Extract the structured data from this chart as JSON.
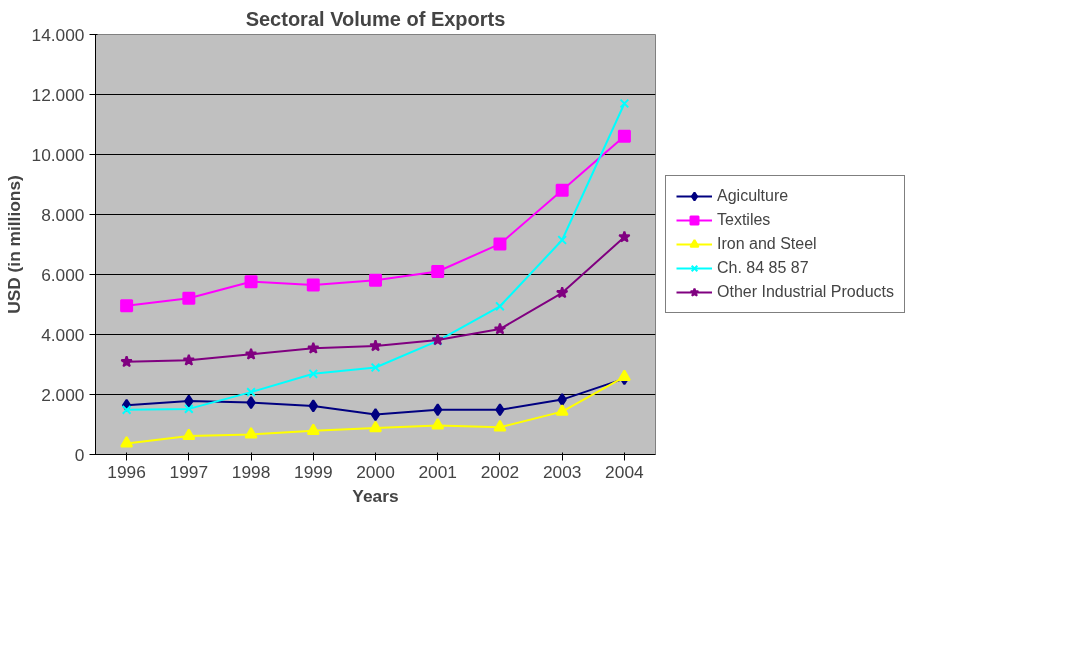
{
  "chart_data": {
    "type": "line",
    "title": "Sectoral Volume of Exports",
    "xlabel": "Years",
    "ylabel": "USD (in millions)",
    "categories": [
      "1996",
      "1997",
      "1998",
      "1999",
      "2000",
      "2001",
      "2002",
      "2003",
      "2004"
    ],
    "series": [
      {
        "name": "Agiculture",
        "color": "#000080",
        "marker": "diamond",
        "values": [
          1640,
          1780,
          1730,
          1620,
          1330,
          1490,
          1490,
          1830,
          2530
        ]
      },
      {
        "name": "Textiles",
        "color": "#ff00ff",
        "marker": "square",
        "values": [
          4960,
          5210,
          5760,
          5650,
          5810,
          6100,
          7020,
          8810,
          10610
        ]
      },
      {
        "name": "Iron and Steel",
        "color": "#ffff00",
        "marker": "triangle",
        "values": [
          370,
          620,
          670,
          790,
          880,
          970,
          910,
          1430,
          2590
        ]
      },
      {
        "name": "Ch. 84 85 87",
        "color": "#00ffff",
        "marker": "cross",
        "values": [
          1490,
          1520,
          2080,
          2690,
          2900,
          3790,
          4940,
          7150,
          11700
        ]
      },
      {
        "name": "Other Industrial Products",
        "color": "#800080",
        "marker": "star",
        "values": [
          3090,
          3140,
          3340,
          3540,
          3620,
          3820,
          4180,
          5390,
          7250
        ]
      }
    ],
    "ylim": [
      0,
      14000
    ],
    "yticks": [
      0,
      {
        "value": 2000,
        "label": "2.000"
      },
      {
        "value": 4000,
        "label": "4.000"
      },
      {
        "value": 6000,
        "label": "6.000"
      },
      {
        "value": 8000,
        "label": "8.000"
      },
      {
        "value": 10000,
        "label": "10.000"
      },
      {
        "value": 12000,
        "label": "12.000"
      },
      {
        "value": 14000,
        "label": "14.000"
      }
    ],
    "grid": "y",
    "legend": "right",
    "line_style": "solid"
  }
}
